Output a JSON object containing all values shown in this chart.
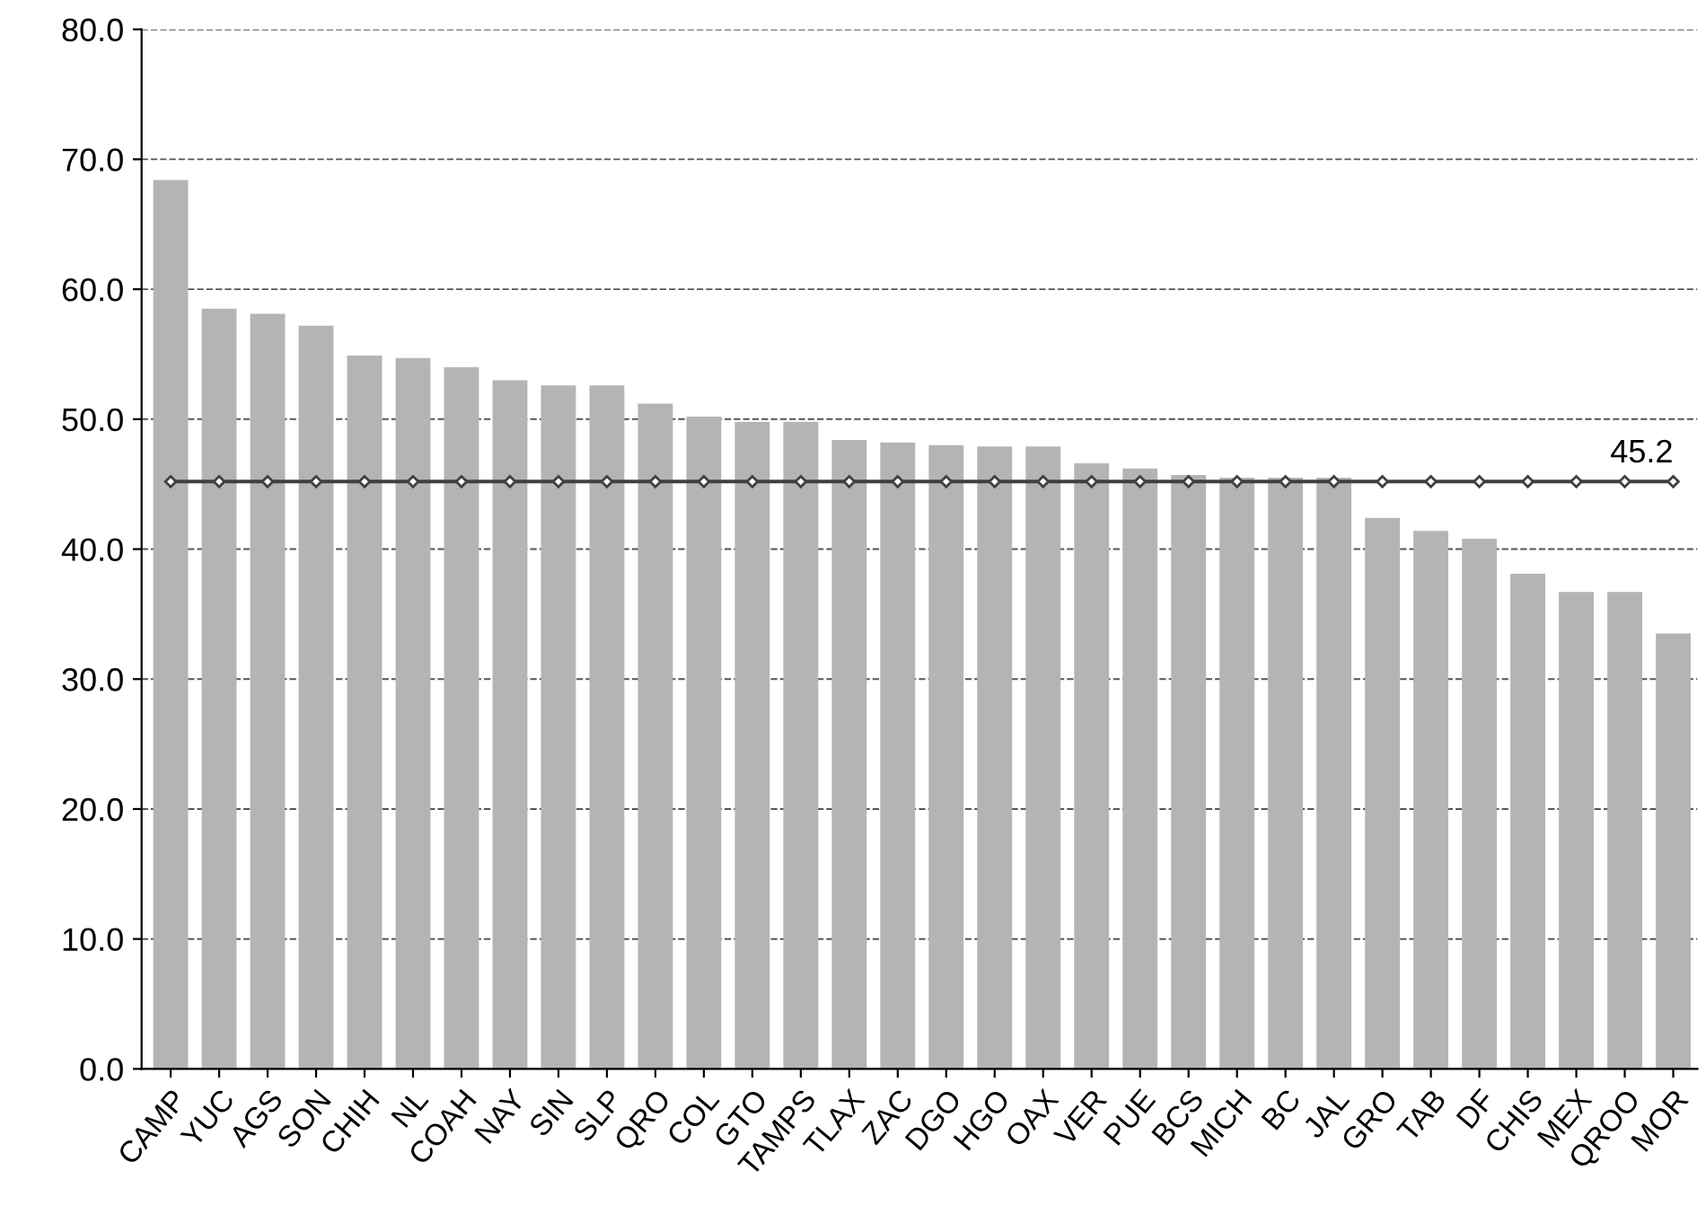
{
  "chart_data": {
    "type": "bar",
    "categories": [
      "CAMP",
      "YUC",
      "AGS",
      "SON",
      "CHIH",
      "NL",
      "COAH",
      "NAY",
      "SIN",
      "SLP",
      "QRO",
      "COL",
      "GTO",
      "TAMPS",
      "TLAX",
      "ZAC",
      "DGO",
      "HGO",
      "OAX",
      "VER",
      "PUE",
      "BCS",
      "MICH",
      "BC",
      "JAL",
      "GRO",
      "TAB",
      "DF",
      "CHIS",
      "MEX",
      "QROO",
      "MOR"
    ],
    "series": [
      {
        "color": "#b4b4b4",
        "values": [
          68.4,
          58.5,
          58.1,
          57.2,
          54.9,
          54.7,
          54.0,
          53.0,
          52.6,
          52.6,
          51.2,
          50.2,
          49.8,
          49.8,
          48.4,
          48.2,
          48.0,
          47.9,
          47.9,
          46.6,
          46.2,
          45.7,
          45.5,
          45.5,
          45.5,
          42.4,
          41.4,
          40.8,
          38.1,
          36.7,
          36.7,
          33.5
        ]
      },
      {
        "type": "line",
        "color": "#404040",
        "marker": "diamond",
        "values": [
          45.2,
          45.2,
          45.2,
          45.2,
          45.2,
          45.2,
          45.2,
          45.2,
          45.2,
          45.2,
          45.2,
          45.2,
          45.2,
          45.2,
          45.2,
          45.2,
          45.2,
          45.2,
          45.2,
          45.2,
          45.2,
          45.2,
          45.2,
          45.2,
          45.2,
          45.2,
          45.2,
          45.2,
          45.2,
          45.2,
          45.2,
          45.2
        ],
        "value_labels": [
          null,
          null,
          null,
          null,
          null,
          null,
          null,
          null,
          null,
          null,
          null,
          null,
          null,
          null,
          null,
          null,
          null,
          null,
          null,
          null,
          null,
          null,
          null,
          null,
          null,
          null,
          null,
          null,
          null,
          null,
          null,
          "45.2"
        ]
      }
    ],
    "ylim": [
      0,
      80
    ],
    "yticks": [
      {
        "value": 0,
        "label": "0.0"
      },
      {
        "value": 10,
        "label": "10.0"
      },
      {
        "value": 20,
        "label": "20.0"
      },
      {
        "value": 30,
        "label": "30.0"
      },
      {
        "value": 40,
        "label": "40.0"
      },
      {
        "value": 50,
        "label": "50.0"
      },
      {
        "value": 60,
        "label": "60.0"
      },
      {
        "value": 70,
        "label": "70.0"
      },
      {
        "value": 80,
        "label": "80.0"
      }
    ],
    "grid": "y"
  }
}
